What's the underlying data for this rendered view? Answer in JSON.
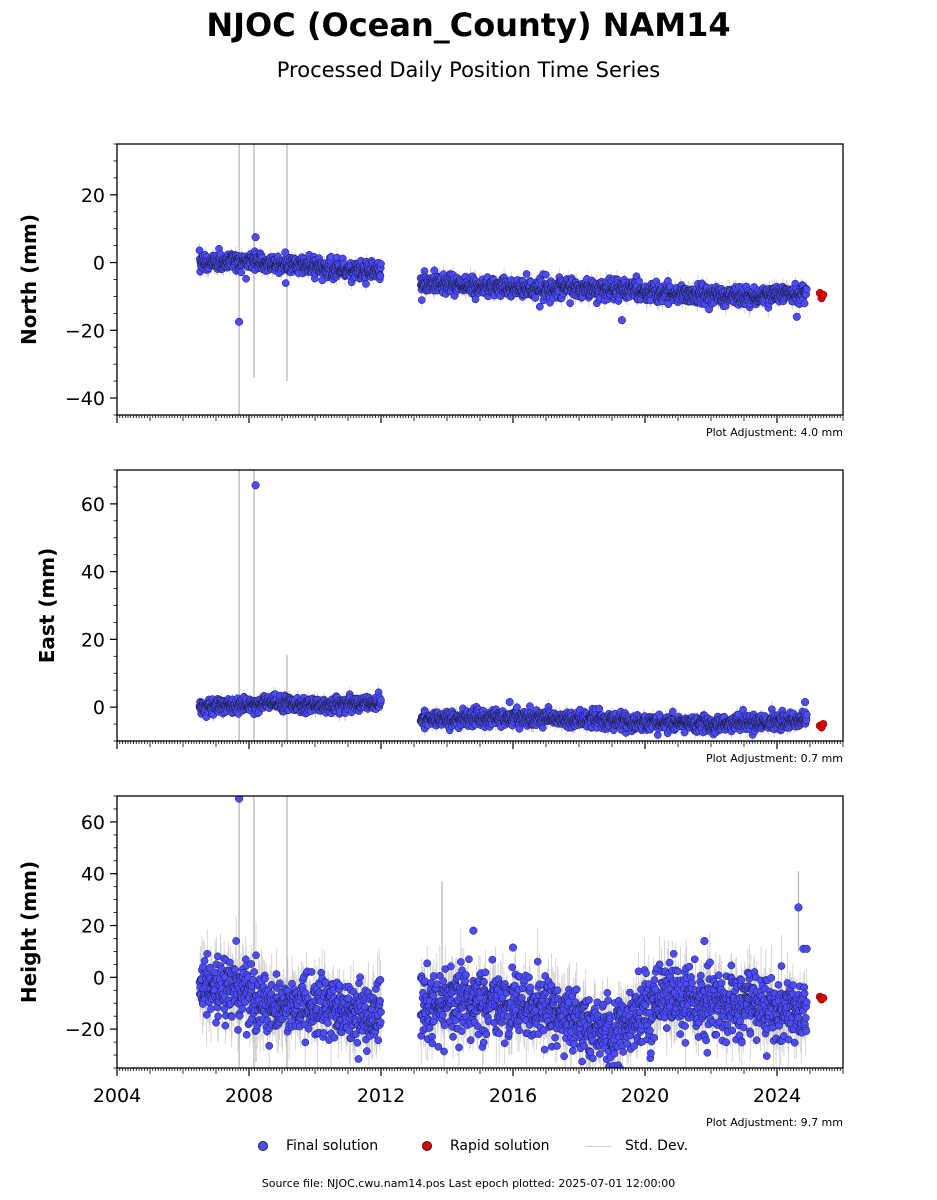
{
  "title": "NJOC (Ocean_County) NAM14",
  "subtitle": "Processed Daily Position Time Series",
  "legend": {
    "final_label": "Final solution",
    "rapid_label": "Rapid solution",
    "stddev_label": "Std. Dev."
  },
  "colors": {
    "final": "#4b4bff",
    "rapid": "#e00000",
    "stddev": "#b8b8b8"
  },
  "source_text": "Source file: NJOC.cwu.nam14.pos  Last epoch plotted: 2025-07-01 12:00:00",
  "chart_data": [
    {
      "type": "scatter",
      "panel": "north",
      "ylabel": "North (mm)",
      "ylim": [
        -45,
        35
      ],
      "yticks": [
        20,
        0,
        -20,
        -40
      ],
      "ytick_labels": [
        "20",
        "0",
        "−20",
        "−40"
      ],
      "xlim": [
        2004.0,
        2026.0
      ],
      "xticks": [
        2004,
        2008,
        2012,
        2016,
        2020,
        2024
      ],
      "adjustment": "Plot Adjustment: 4.0 mm",
      "series": [
        {
          "name": "Final solution",
          "segments": [
            {
              "x": [
                2006.5,
                2008.0,
                2010.0,
                2012.0
              ],
              "y": [
                0,
                0.5,
                -1.5,
                -2.5
              ],
              "scatter_sd": 1.3
            },
            {
              "x": [
                2013.2,
                2016.0,
                2019.0,
                2021.0,
                2023.0,
                2024.9
              ],
              "y": [
                -6,
                -7.5,
                -8,
                -9,
                -10,
                -9
              ],
              "scatter_sd": 1.4
            }
          ],
          "outliers": [
            {
              "x": 2007.7,
              "y": -17.5
            },
            {
              "x": 2008.2,
              "y": 7.5
            },
            {
              "x": 2009.1,
              "y": 3
            },
            {
              "x": 2019.3,
              "y": -17
            },
            {
              "x": 2024.6,
              "y": -16
            }
          ]
        },
        {
          "name": "Rapid solution",
          "x": [
            2025.3,
            2025.35,
            2025.4
          ],
          "y": [
            -9,
            -10.5,
            -9.5
          ]
        }
      ],
      "stddev_spikes": [
        {
          "x": 2007.7,
          "low": -45,
          "high": 35
        },
        {
          "x": 2008.15,
          "low": -34,
          "high": 35
        },
        {
          "x": 2009.15,
          "low": -35,
          "high": 35
        }
      ]
    },
    {
      "type": "scatter",
      "panel": "east",
      "ylabel": "East (mm)",
      "ylim": [
        -10,
        70
      ],
      "yticks": [
        60,
        40,
        20,
        0
      ],
      "ytick_labels": [
        "60",
        "40",
        "20",
        "0"
      ],
      "xlim": [
        2004.0,
        2026.0
      ],
      "xticks": [
        2004,
        2008,
        2012,
        2016,
        2020,
        2024
      ],
      "adjustment": "Plot Adjustment: 0.7 mm",
      "series": [
        {
          "name": "Final solution",
          "segments": [
            {
              "x": [
                2006.5,
                2008.5,
                2010.5,
                2012.0
              ],
              "y": [
                0,
                1,
                0.5,
                1.5
              ],
              "scatter_sd": 1.1
            },
            {
              "x": [
                2013.2,
                2016.0,
                2019.0,
                2022.0,
                2024.9
              ],
              "y": [
                -3.5,
                -3,
                -4,
                -5,
                -4
              ],
              "scatter_sd": 1.2
            }
          ],
          "outliers": [
            {
              "x": 2008.2,
              "y": 65.5
            },
            {
              "x": 2015.9,
              "y": 1.5
            },
            {
              "x": 2024.85,
              "y": 1.5
            }
          ]
        },
        {
          "name": "Rapid solution",
          "x": [
            2025.3,
            2025.35,
            2025.4
          ],
          "y": [
            -5.5,
            -6,
            -5
          ]
        }
      ],
      "stddev_spikes": [
        {
          "x": 2007.7,
          "low": -10,
          "high": 70
        },
        {
          "x": 2008.15,
          "low": -10,
          "high": 70
        },
        {
          "x": 2009.15,
          "low": -10,
          "high": 15.5
        }
      ]
    },
    {
      "type": "scatter",
      "panel": "height",
      "ylabel": "Height (mm)",
      "ylim": [
        -35,
        70
      ],
      "yticks": [
        60,
        40,
        20,
        0,
        -20
      ],
      "ytick_labels": [
        "60",
        "40",
        "20",
        "0",
        "−20"
      ],
      "xlim": [
        2004.0,
        2026.0
      ],
      "xticks": [
        2004,
        2008,
        2012,
        2016,
        2020,
        2024
      ],
      "xtick_labels": [
        "2004",
        "2008",
        "2012",
        "2016",
        "2020",
        "2024"
      ],
      "adjustment": "Plot Adjustment: 9.7 mm",
      "series": [
        {
          "name": "Final solution",
          "segments": [
            {
              "x": [
                2006.5,
                2007.5,
                2008.5,
                2010.0,
                2011.0,
                2012.0
              ],
              "y": [
                -5,
                -4,
                -12,
                -10,
                -14,
                -15
              ],
              "scatter_sd": 6
            },
            {
              "x": [
                2013.2,
                2015.0,
                2017.0,
                2019.0,
                2020.5,
                2022.5,
                2024.9
              ],
              "y": [
                -10,
                -10,
                -12,
                -22,
                -8,
                -10,
                -12
              ],
              "scatter_sd": 6
            }
          ],
          "outliers": [
            {
              "x": 2007.7,
              "y": 69
            },
            {
              "x": 2014.8,
              "y": 18
            },
            {
              "x": 2016.0,
              "y": 11.5
            },
            {
              "x": 2021.8,
              "y": 14
            },
            {
              "x": 2024.65,
              "y": 27
            },
            {
              "x": 2024.8,
              "y": 11
            },
            {
              "x": 2024.9,
              "y": 11
            }
          ]
        },
        {
          "name": "Rapid solution",
          "x": [
            2025.3,
            2025.35,
            2025.4
          ],
          "y": [
            -7.5,
            -8.5,
            -8
          ]
        }
      ],
      "stddev_spikes": [
        {
          "x": 2007.7,
          "low": -35,
          "high": 70
        },
        {
          "x": 2008.15,
          "low": -35,
          "high": 70
        },
        {
          "x": 2009.15,
          "low": -35,
          "high": 70
        },
        {
          "x": 2013.85,
          "low": -20,
          "high": 37
        },
        {
          "x": 2024.65,
          "low": 10,
          "high": 41
        }
      ]
    }
  ]
}
